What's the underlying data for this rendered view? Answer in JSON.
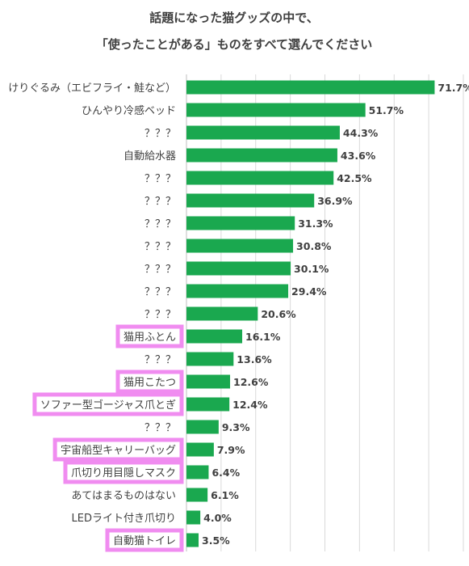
{
  "chart_data": {
    "type": "bar",
    "orientation": "horizontal",
    "title_lines": [
      "話題になった猫グッズの中で、",
      "「使ったことがある」ものをすべて選んでください"
    ],
    "categories": [
      "けりぐるみ（エビフライ・鮭など）",
      "ひんやり冷感ベッド",
      "？？？",
      "自動給水器",
      "？？？",
      "？？？",
      "？？？",
      "？？？",
      "？？？",
      "？？？",
      "？？？",
      "猫用ふとん",
      "？？？",
      "猫用こたつ",
      "ソファー型ゴージャス爪とぎ",
      "？？？",
      "宇宙船型キャリーバッグ",
      "爪切り用目隠しマスク",
      "あてはまるものはない",
      "LEDライト付き爪切り",
      "自動猫トイレ"
    ],
    "values": [
      71.7,
      51.7,
      44.3,
      43.6,
      42.5,
      36.9,
      31.3,
      30.8,
      30.1,
      29.4,
      20.6,
      16.1,
      13.6,
      12.6,
      12.4,
      9.3,
      7.9,
      6.4,
      6.1,
      4.0,
      3.5
    ],
    "value_labels": [
      "71.7%",
      "51.7%",
      "44.3%",
      "43.6%",
      "42.5%",
      "36.9%",
      "31.3%",
      "30.8%",
      "30.1%",
      "29.4%",
      "20.6%",
      "16.1%",
      "13.6%",
      "12.6%",
      "12.4%",
      "9.3%",
      "7.9%",
      "6.4%",
      "6.1%",
      "4.0%",
      "3.5%"
    ],
    "highlighted": [
      11,
      13,
      14,
      16,
      17,
      20
    ],
    "xlim": [
      0,
      80
    ],
    "grid": true,
    "legend": "none",
    "bar_color": "#1aa84f",
    "highlight_color": "#f08cf0"
  }
}
